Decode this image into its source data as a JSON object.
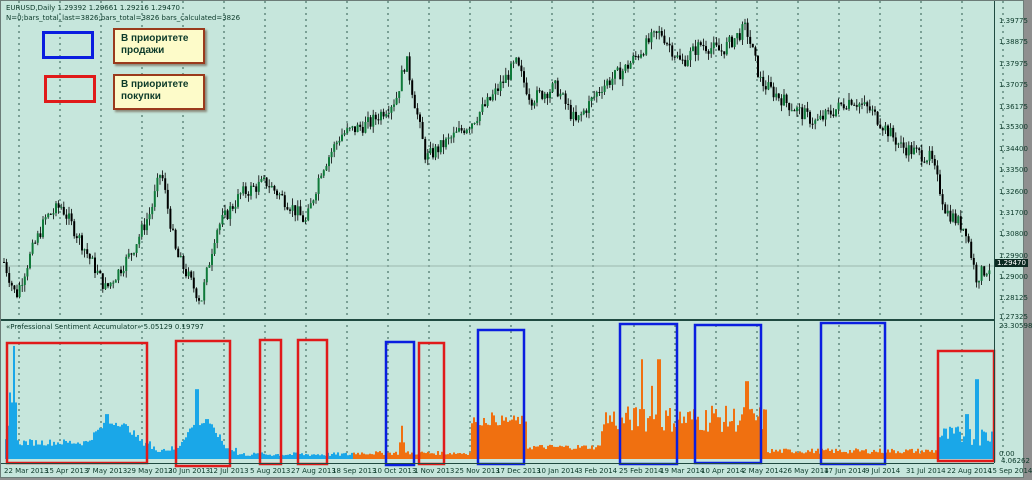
{
  "chart": {
    "symbol_line": "EURUSD,Daily  1.29392 1.29661 1.29216 1.29470",
    "info_line": "N=0;bars_total_last=3826;bars_total=3826 bars_calculated=3826",
    "current_price": "1.29470",
    "price_axis": [
      "1.39775",
      "1.38875",
      "1.37975",
      "1.37075",
      "1.36175",
      "1.35300",
      "1.34400",
      "1.33500",
      "1.32600",
      "1.31700",
      "1.30800",
      "1.29900",
      "1.29000",
      "1.28125",
      "1.27325"
    ],
    "price_range": [
      1.27325,
      1.39775
    ]
  },
  "indicator": {
    "title": "«Professional Sentiment Accumulator» 5.05129 0.19797",
    "axis_max": "23.30598",
    "axis_min": "0.00",
    "axis_extra": "4.06262",
    "colors": {
      "sell": "#1aa7e8",
      "buy": "#f07010"
    }
  },
  "legend": {
    "sell_label": "В приоритете продажи",
    "buy_label": "В приоритете покупки",
    "sell_color": "#0a1ee0",
    "buy_color": "#e01a1a"
  },
  "dates": [
    "22 Mar 2013",
    "15 Apr 2013",
    "7 May 2013",
    "29 May 2013",
    "20 Jun 2013",
    "12 Jul 2013",
    "5 Aug 2013",
    "27 Aug 2013",
    "18 Sep 2013",
    "10 Oct 2013",
    "1 Nov 2013",
    "25 Nov 2013",
    "17 Dec 2013",
    "10 Jan 2014",
    "3 Feb 2014",
    "25 Feb 2014",
    "19 Mar 2014",
    "10 Apr 2014",
    "2 May 2014",
    "26 May 2014",
    "17 Jun 2014",
    "9 Jul 2014",
    "31 Jul 2014",
    "22 Aug 2014",
    "15 Sep 2014"
  ]
}
